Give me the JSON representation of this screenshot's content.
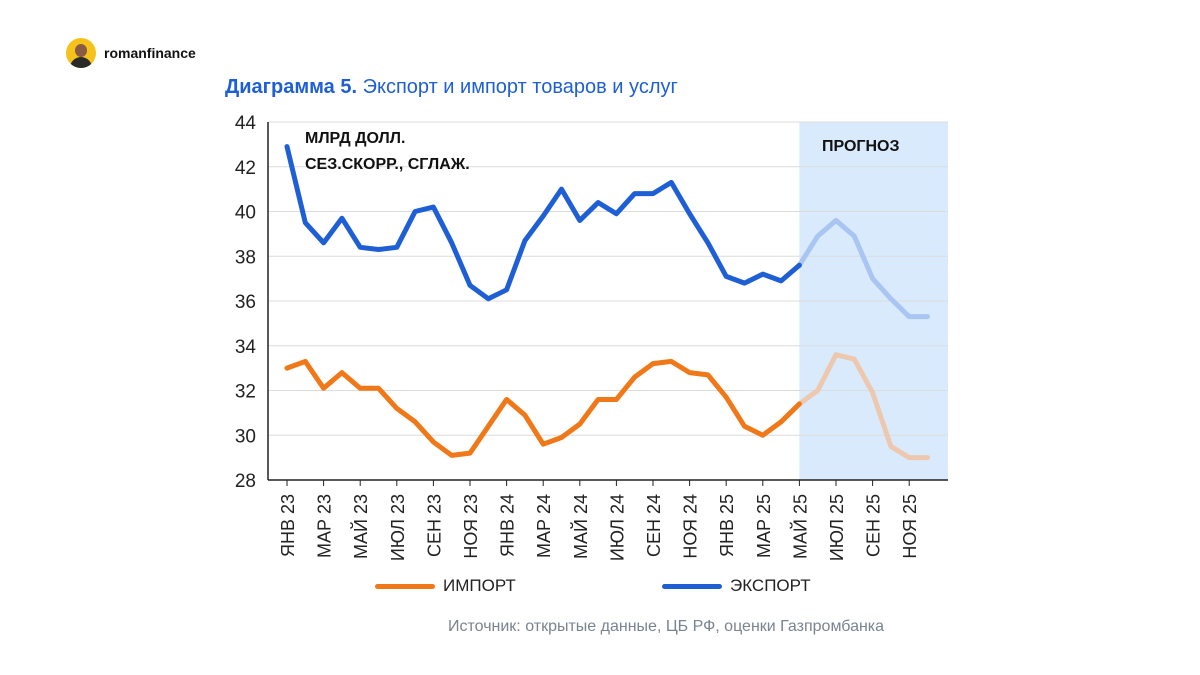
{
  "brand": {
    "name": "romanfinance",
    "avatar_icon": "user-avatar-icon"
  },
  "title": {
    "prefix": "Диаграмма 5.",
    "text": "Экспорт и импорт товаров и услуг"
  },
  "source": "Источник: открытые данные, ЦБ РФ, оценки Газпромбанка",
  "chart_data": {
    "type": "line",
    "annotation_lines": [
      "МЛРД ДОЛЛ.",
      "СЕЗ.СКОРР., СГЛАЖ."
    ],
    "forecast_label": "ПРОГНОЗ",
    "forecast_start_index": 28,
    "ylim": [
      28,
      44
    ],
    "yticks": [
      28,
      30,
      32,
      34,
      36,
      38,
      40,
      42,
      44
    ],
    "x_tick_labels": [
      {
        "index": 0,
        "label": "ЯНВ 23"
      },
      {
        "index": 2,
        "label": "МАР 23"
      },
      {
        "index": 4,
        "label": "МАЙ 23"
      },
      {
        "index": 6,
        "label": "ИЮЛ 23"
      },
      {
        "index": 8,
        "label": "СЕН 23"
      },
      {
        "index": 10,
        "label": "НОЯ 23"
      },
      {
        "index": 12,
        "label": "ЯНВ 24"
      },
      {
        "index": 14,
        "label": "МАР 24"
      },
      {
        "index": 16,
        "label": "МАЙ 24"
      },
      {
        "index": 18,
        "label": "ИЮЛ 24"
      },
      {
        "index": 20,
        "label": "СЕН 24"
      },
      {
        "index": 22,
        "label": "НОЯ 24"
      },
      {
        "index": 24,
        "label": "ЯНВ 25"
      },
      {
        "index": 26,
        "label": "МАР 25"
      },
      {
        "index": 28,
        "label": "МАЙ 25"
      },
      {
        "index": 30,
        "label": "ИЮЛ 25"
      },
      {
        "index": 32,
        "label": "СЕН 25"
      },
      {
        "index": 34,
        "label": "НОЯ 25"
      }
    ],
    "series": [
      {
        "name": "ИМПОРТ",
        "color": "#f07818",
        "forecast_color": "#eec8ae",
        "values": [
          33.0,
          33.3,
          32.1,
          32.8,
          32.1,
          32.1,
          31.2,
          30.6,
          29.7,
          29.1,
          29.2,
          30.4,
          31.6,
          30.9,
          29.6,
          29.9,
          30.5,
          31.6,
          31.6,
          32.6,
          33.2,
          33.3,
          32.8,
          32.7,
          31.7,
          30.4,
          30.0,
          30.6,
          31.4,
          32.0,
          33.6,
          33.4,
          31.9,
          29.5,
          29.0,
          29.0
        ]
      },
      {
        "name": "ЭКСПОРТ",
        "color": "#1f5fd6",
        "forecast_color": "#a9c6f2",
        "values": [
          42.9,
          39.5,
          38.6,
          39.7,
          38.4,
          38.3,
          38.4,
          40.0,
          40.2,
          38.6,
          36.7,
          36.1,
          36.5,
          38.7,
          39.8,
          41.0,
          39.6,
          40.4,
          39.9,
          40.8,
          40.8,
          41.3,
          39.9,
          38.6,
          37.1,
          36.8,
          37.2,
          36.9,
          37.6,
          38.9,
          39.6,
          38.9,
          37.0,
          36.1,
          35.3,
          35.3
        ]
      }
    ]
  }
}
